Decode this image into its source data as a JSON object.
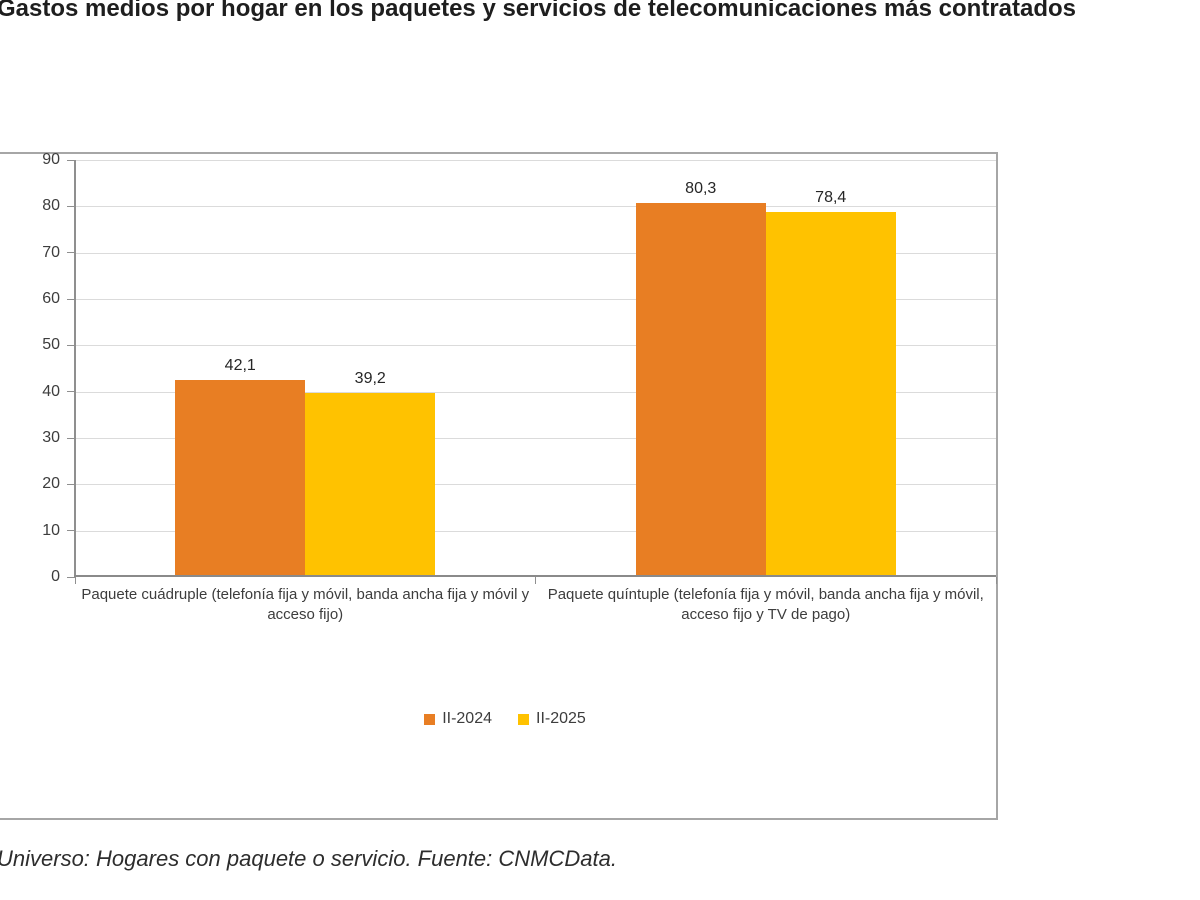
{
  "title": "Gastos medios por hogar en los paquetes y servicios de telecomunicaciones más contratados",
  "footer": "Universo: Hogares con paquete o servicio. Fuente: CNMCData.",
  "colors": {
    "series_2024": "#e87e23",
    "series_2025": "#ffc200",
    "gridline": "#dbdbdb",
    "axis": "#8f8f8f",
    "frame_border": "#a6a6a6",
    "text": "#3d3d3d",
    "title_text": "#1e1e1e"
  },
  "chart_data": {
    "type": "bar",
    "title": "Gastos medios por hogar en los paquetes y servicios de telecomunicaciones más contratados",
    "xlabel": "",
    "ylabel": "",
    "categories": [
      "Paquete cuádruple (telefonía fija y móvil, banda ancha fija y móvil y acceso fijo)",
      "Paquete quíntuple (telefonía fija y móvil, banda ancha fija y móvil, acceso fijo y TV de pago)"
    ],
    "series": [
      {
        "name": "II-2024",
        "color": "#e87e23",
        "values": [
          42.1,
          80.3
        ],
        "labels": [
          "42,1",
          "80,3"
        ]
      },
      {
        "name": "II-2025",
        "color": "#ffc200",
        "values": [
          39.2,
          78.4
        ],
        "labels": [
          "39,2",
          "78,4"
        ]
      }
    ],
    "ylim": [
      0,
      90
    ],
    "ytick_step": 10,
    "grid": true,
    "legend_position": "bottom",
    "source_note": "Universo: Hogares con paquete o servicio. Fuente: CNMCData."
  }
}
